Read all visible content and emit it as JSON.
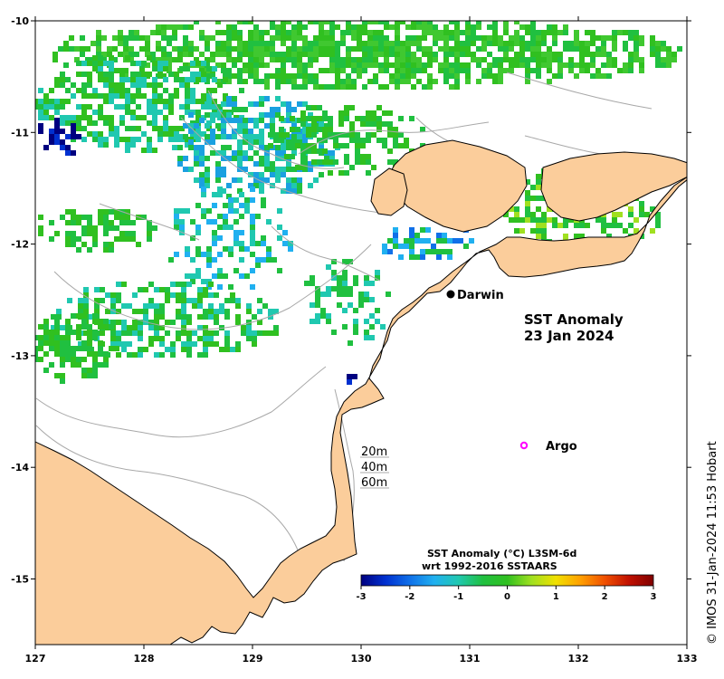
{
  "map": {
    "title_line1": "SST Anomaly",
    "title_line2": "23 Jan 2024",
    "lon_ticks": [
      "127",
      "128",
      "129",
      "130",
      "131",
      "132",
      "133"
    ],
    "lat_ticks": [
      "-10",
      "-11",
      "-12",
      "-13",
      "-14",
      "-15"
    ],
    "places": [
      {
        "name": "Darwin",
        "marker": "filled-dot"
      },
      {
        "name": "Argo",
        "marker": "magenta-ring"
      }
    ],
    "depth_legend": [
      "20m",
      "40m",
      "60m"
    ],
    "colorbar": {
      "title_line1": "SST Anomaly (°C) L3SM-6d",
      "title_line2": "wrt 1992-2016 SSTAARS",
      "ticks": [
        "-3",
        "-2",
        "-1",
        "0",
        "1",
        "2",
        "3"
      ],
      "stops": [
        "#000080",
        "#0030d0",
        "#1070e8",
        "#20b0f0",
        "#20c8b0",
        "#20c040",
        "#30c020",
        "#a0e020",
        "#f0e000",
        "#ffa000",
        "#f05000",
        "#c01000",
        "#800000"
      ]
    },
    "credit": "© IMOS 31-Jan-2024 11:53 Hobart",
    "colors": {
      "land": "#fbcd9b",
      "sea_nodata": "#ffffff",
      "isobath": "#a8a8a8",
      "coast": "#000000",
      "argo": "#ff00ff"
    }
  }
}
